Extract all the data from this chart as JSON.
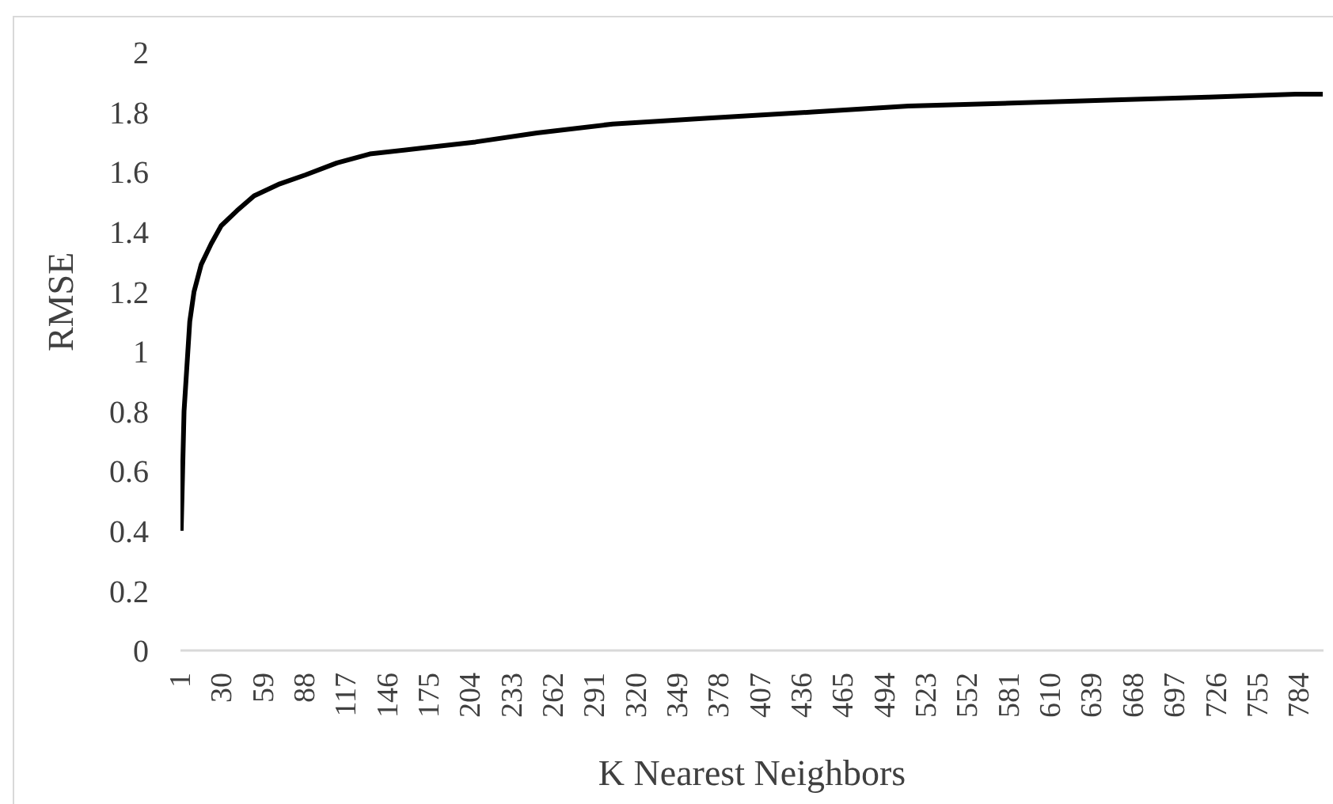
{
  "chart_data": {
    "type": "line",
    "xlabel": "K Nearest Neighbors",
    "ylabel": "RMSE",
    "x": [
      1,
      2,
      3,
      5,
      7,
      10,
      15,
      22,
      29,
      40,
      52,
      70,
      88,
      110,
      133,
      170,
      207,
      250,
      303,
      370,
      443,
      510,
      582,
      650,
      720,
      781,
      800
    ],
    "series": [
      {
        "color": "#000000",
        "line_style": "solid",
        "values": [
          0.4,
          0.6,
          0.8,
          0.95,
          1.1,
          1.2,
          1.29,
          1.36,
          1.42,
          1.47,
          1.52,
          1.56,
          1.59,
          1.63,
          1.66,
          1.68,
          1.7,
          1.73,
          1.76,
          1.78,
          1.8,
          1.82,
          1.83,
          1.84,
          1.85,
          1.86,
          1.86
        ]
      }
    ],
    "xlim": [
      0.5,
      800.5
    ],
    "xticks": [
      1,
      30,
      59,
      88,
      117,
      146,
      175,
      204,
      233,
      262,
      291,
      320,
      349,
      378,
      407,
      436,
      465,
      494,
      523,
      552,
      581,
      610,
      639,
      668,
      697,
      726,
      755,
      784
    ],
    "ylim": [
      0,
      2
    ],
    "yticks": [
      0,
      0.2,
      0.4,
      0.6,
      0.8,
      1,
      1.2,
      1.4,
      1.6,
      1.8,
      2
    ]
  }
}
